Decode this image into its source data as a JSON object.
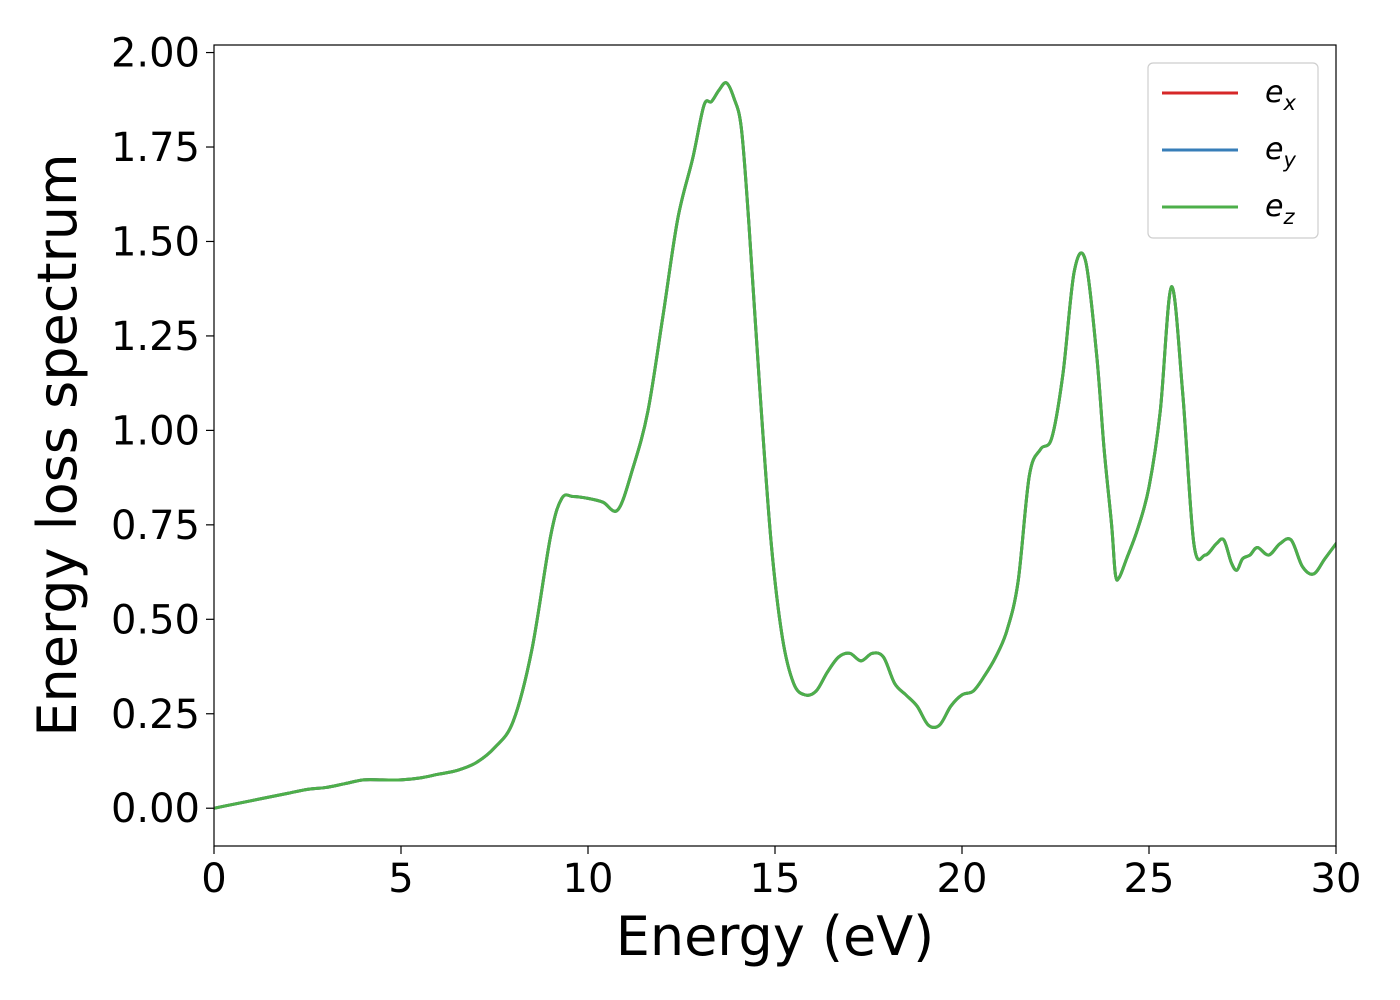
{
  "chart_data": {
    "type": "line",
    "title": "",
    "xlabel": "Energy (eV)",
    "ylabel": "Energy loss spectrum",
    "xlim": [
      0,
      30
    ],
    "ylim": [
      -0.1,
      2.02
    ],
    "xticks": [
      0,
      5,
      10,
      15,
      20,
      25,
      30
    ],
    "xtick_labels": [
      "0",
      "5",
      "10",
      "15",
      "20",
      "25",
      "30"
    ],
    "yticks": [
      0.0,
      0.25,
      0.5,
      0.75,
      1.0,
      1.25,
      1.5,
      1.75,
      2.0
    ],
    "ytick_labels": [
      "0.00",
      "0.25",
      "0.50",
      "0.75",
      "1.00",
      "1.25",
      "1.50",
      "1.75",
      "2.00"
    ],
    "grid": false,
    "legend_position": "top-right",
    "series": [
      {
        "legend_base": "e",
        "legend_sub": "x",
        "color": "#d62728",
        "x": [
          0,
          0.5,
          1,
          1.5,
          2,
          2.5,
          3,
          3.5,
          4,
          4.5,
          5,
          5.5,
          6,
          6.5,
          7,
          7.5,
          8,
          8.5,
          9,
          9.3,
          9.6,
          10,
          10.4,
          10.8,
          11.2,
          11.6,
          12,
          12.4,
          12.8,
          13.1,
          13.3,
          13.5,
          13.7,
          13.9,
          14.1,
          14.3,
          14.6,
          14.9,
          15.2,
          15.5,
          15.8,
          16.1,
          16.4,
          16.7,
          17,
          17.3,
          17.6,
          17.9,
          18.2,
          18.5,
          18.8,
          19.1,
          19.4,
          19.7,
          20,
          20.3,
          20.6,
          20.9,
          21.2,
          21.5,
          21.8,
          22.1,
          22.4,
          22.7,
          23,
          23.3,
          23.6,
          23.8,
          24,
          24.1,
          24.2,
          24.4,
          24.7,
          25,
          25.3,
          25.6,
          25.9,
          26.2,
          26.5,
          26.8,
          27,
          27.2,
          27.35,
          27.5,
          27.7,
          27.9,
          28.2,
          28.5,
          28.8,
          29.1,
          29.4,
          29.7,
          30
        ],
        "y": [
          0.0,
          0.01,
          0.02,
          0.03,
          0.04,
          0.05,
          0.055,
          0.065,
          0.075,
          0.075,
          0.075,
          0.08,
          0.09,
          0.1,
          0.12,
          0.16,
          0.23,
          0.42,
          0.72,
          0.82,
          0.825,
          0.82,
          0.81,
          0.79,
          0.9,
          1.05,
          1.3,
          1.56,
          1.72,
          1.86,
          1.87,
          1.9,
          1.92,
          1.88,
          1.8,
          1.55,
          1.1,
          0.7,
          0.45,
          0.33,
          0.3,
          0.31,
          0.36,
          0.4,
          0.41,
          0.39,
          0.41,
          0.4,
          0.33,
          0.3,
          0.27,
          0.22,
          0.22,
          0.27,
          0.3,
          0.31,
          0.35,
          0.4,
          0.47,
          0.6,
          0.88,
          0.95,
          0.98,
          1.15,
          1.42,
          1.45,
          1.2,
          0.95,
          0.75,
          0.62,
          0.61,
          0.66,
          0.74,
          0.85,
          1.05,
          1.38,
          1.1,
          0.7,
          0.67,
          0.7,
          0.71,
          0.65,
          0.63,
          0.66,
          0.67,
          0.69,
          0.67,
          0.7,
          0.71,
          0.64,
          0.62,
          0.66,
          0.7
        ],
        "note_alias": "ex"
      },
      {
        "legend_base": "e",
        "legend_sub": "y",
        "color": "#377eb8",
        "x": [
          0,
          0.5,
          1,
          1.5,
          2,
          2.5,
          3,
          3.5,
          4,
          4.5,
          5,
          5.5,
          6,
          6.5,
          7,
          7.5,
          8,
          8.5,
          9,
          9.3,
          9.6,
          10,
          10.4,
          10.8,
          11.2,
          11.6,
          12,
          12.4,
          12.8,
          13.1,
          13.3,
          13.5,
          13.7,
          13.9,
          14.1,
          14.3,
          14.6,
          14.9,
          15.2,
          15.5,
          15.8,
          16.1,
          16.4,
          16.7,
          17,
          17.3,
          17.6,
          17.9,
          18.2,
          18.5,
          18.8,
          19.1,
          19.4,
          19.7,
          20,
          20.3,
          20.6,
          20.9,
          21.2,
          21.5,
          21.8,
          22.1,
          22.4,
          22.7,
          23,
          23.3,
          23.6,
          23.8,
          24,
          24.1,
          24.2,
          24.4,
          24.7,
          25,
          25.3,
          25.6,
          25.9,
          26.2,
          26.5,
          26.8,
          27,
          27.2,
          27.35,
          27.5,
          27.7,
          27.9,
          28.2,
          28.5,
          28.8,
          29.1,
          29.4,
          29.7,
          30
        ],
        "y": [
          0.0,
          0.01,
          0.02,
          0.03,
          0.04,
          0.05,
          0.055,
          0.065,
          0.075,
          0.075,
          0.075,
          0.08,
          0.09,
          0.1,
          0.12,
          0.16,
          0.23,
          0.42,
          0.72,
          0.82,
          0.825,
          0.82,
          0.81,
          0.79,
          0.9,
          1.05,
          1.3,
          1.56,
          1.72,
          1.86,
          1.87,
          1.9,
          1.92,
          1.88,
          1.8,
          1.55,
          1.1,
          0.7,
          0.45,
          0.33,
          0.3,
          0.31,
          0.36,
          0.4,
          0.41,
          0.39,
          0.41,
          0.4,
          0.33,
          0.3,
          0.27,
          0.22,
          0.22,
          0.27,
          0.3,
          0.31,
          0.35,
          0.4,
          0.47,
          0.6,
          0.88,
          0.95,
          0.98,
          1.15,
          1.42,
          1.45,
          1.2,
          0.95,
          0.75,
          0.62,
          0.61,
          0.66,
          0.74,
          0.85,
          1.05,
          1.38,
          1.1,
          0.7,
          0.67,
          0.7,
          0.71,
          0.65,
          0.63,
          0.66,
          0.67,
          0.69,
          0.67,
          0.7,
          0.71,
          0.64,
          0.62,
          0.66,
          0.7
        ],
        "note_alias": "ey"
      },
      {
        "legend_base": "e",
        "legend_sub": "z",
        "color": "#4daf4a",
        "x": [
          0,
          0.5,
          1,
          1.5,
          2,
          2.5,
          3,
          3.5,
          4,
          4.5,
          5,
          5.5,
          6,
          6.5,
          7,
          7.5,
          8,
          8.5,
          9,
          9.3,
          9.6,
          10,
          10.4,
          10.8,
          11.2,
          11.6,
          12,
          12.4,
          12.8,
          13.1,
          13.3,
          13.5,
          13.7,
          13.9,
          14.1,
          14.3,
          14.6,
          14.9,
          15.2,
          15.5,
          15.8,
          16.1,
          16.4,
          16.7,
          17,
          17.3,
          17.6,
          17.9,
          18.2,
          18.5,
          18.8,
          19.1,
          19.4,
          19.7,
          20,
          20.3,
          20.6,
          20.9,
          21.2,
          21.5,
          21.8,
          22.1,
          22.4,
          22.7,
          23,
          23.3,
          23.6,
          23.8,
          24,
          24.1,
          24.2,
          24.4,
          24.7,
          25,
          25.3,
          25.6,
          25.9,
          26.2,
          26.5,
          26.8,
          27,
          27.2,
          27.35,
          27.5,
          27.7,
          27.9,
          28.2,
          28.5,
          28.8,
          29.1,
          29.4,
          29.7,
          30
        ],
        "y": [
          0.0,
          0.01,
          0.02,
          0.03,
          0.04,
          0.05,
          0.055,
          0.065,
          0.075,
          0.075,
          0.075,
          0.08,
          0.09,
          0.1,
          0.12,
          0.16,
          0.23,
          0.42,
          0.72,
          0.82,
          0.825,
          0.82,
          0.81,
          0.79,
          0.9,
          1.05,
          1.3,
          1.56,
          1.72,
          1.86,
          1.87,
          1.9,
          1.92,
          1.88,
          1.8,
          1.55,
          1.1,
          0.7,
          0.45,
          0.33,
          0.3,
          0.31,
          0.36,
          0.4,
          0.41,
          0.39,
          0.41,
          0.4,
          0.33,
          0.3,
          0.27,
          0.22,
          0.22,
          0.27,
          0.3,
          0.31,
          0.35,
          0.4,
          0.47,
          0.6,
          0.88,
          0.95,
          0.98,
          1.15,
          1.42,
          1.45,
          1.2,
          0.95,
          0.75,
          0.62,
          0.61,
          0.66,
          0.74,
          0.85,
          1.05,
          1.38,
          1.1,
          0.7,
          0.67,
          0.7,
          0.71,
          0.65,
          0.63,
          0.66,
          0.67,
          0.69,
          0.67,
          0.7,
          0.71,
          0.64,
          0.62,
          0.66,
          0.7
        ],
        "note_alias": "ez"
      }
    ]
  }
}
